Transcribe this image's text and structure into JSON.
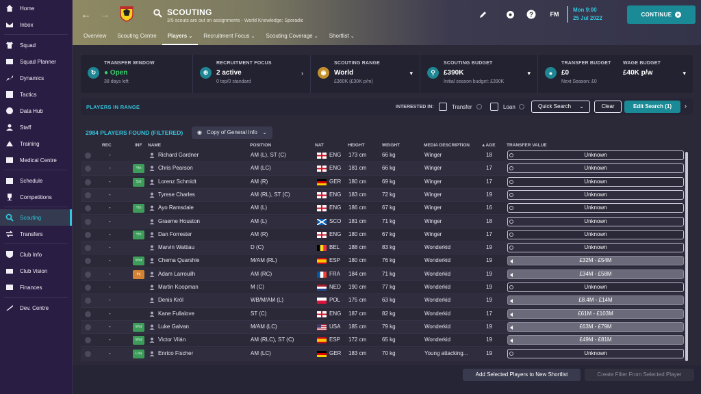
{
  "sidebar": {
    "items": [
      {
        "label": "Home",
        "icon": "home-icon"
      },
      {
        "label": "Inbox",
        "icon": "inbox-icon"
      },
      {
        "label": "Squad",
        "icon": "shirt-icon"
      },
      {
        "label": "Squad Planner",
        "icon": "planner-icon"
      },
      {
        "label": "Dynamics",
        "icon": "dynamics-icon"
      },
      {
        "label": "Tactics",
        "icon": "tactics-icon"
      },
      {
        "label": "Data Hub",
        "icon": "data-hub-icon"
      },
      {
        "label": "Staff",
        "icon": "staff-icon"
      },
      {
        "label": "Training",
        "icon": "training-icon"
      },
      {
        "label": "Medical Centre",
        "icon": "medical-icon"
      },
      {
        "label": "Schedule",
        "icon": "calendar-icon"
      },
      {
        "label": "Competitions",
        "icon": "trophy-icon"
      },
      {
        "label": "Scouting",
        "icon": "search-icon"
      },
      {
        "label": "Transfers",
        "icon": "transfer-icon"
      },
      {
        "label": "Club Info",
        "icon": "shield-icon"
      },
      {
        "label": "Club Vision",
        "icon": "vision-icon"
      },
      {
        "label": "Finances",
        "icon": "finances-icon"
      },
      {
        "label": "Dev. Centre",
        "icon": "dev-centre-icon"
      }
    ]
  },
  "header": {
    "title": "SCOUTING",
    "subtitle": "3/5 scouts are out on assignments - World Knowledge: Sporadic",
    "fm_label": "FM",
    "date_day": "Mon 9:00",
    "date_full": "25 Jul 2022",
    "continue_label": "CONTINUE",
    "tabs": [
      "Overview",
      "Scouting Centre",
      "Players",
      "Recruitment Focus",
      "Scouting Coverage",
      "Shortlist"
    ]
  },
  "info": {
    "transfer_window": {
      "label": "TRANSFER WINDOW",
      "value": "Open",
      "sub": "38 days left"
    },
    "recruitment_focus": {
      "label": "RECRUITMENT FOCUS",
      "value": "2 active",
      "sub": "0 top/0 standard"
    },
    "scouting_range": {
      "label": "SCOUTING RANGE",
      "value": "World",
      "sub": "£360K (£30K p/m)"
    },
    "scouting_budget": {
      "label": "SCOUTING BUDGET",
      "value": "£390K",
      "sub": "Initial season budget: £390K"
    },
    "transfer_budget": {
      "label": "TRANSFER BUDGET",
      "value": "£0",
      "sub": "Next Season: £0"
    },
    "wage_budget": {
      "label": "WAGE BUDGET",
      "value": "£40K p/w"
    }
  },
  "players_bar": {
    "title": "PLAYERS IN RANGE",
    "interested_label": "INTERESTED IN:",
    "transfer_label": "Transfer",
    "loan_label": "Loan",
    "quick_search": "Quick Search",
    "clear": "Clear",
    "edit_search": "Edit Search (1)"
  },
  "found_label": "2984 PLAYERS FOUND (FILTERED)",
  "view_label": "Copy of General Info",
  "columns": {
    "rec": "REC",
    "inf": "INF",
    "name": "NAME",
    "position": "POSITION",
    "nat": "NAT",
    "height": "HEIGHT",
    "weight": "WEIGHT",
    "media": "MEDIA DESCRIPTION",
    "age": "AGE",
    "value": "TRANSFER VALUE"
  },
  "players": [
    {
      "rec": "-",
      "inf": "",
      "name": "Richard Gardner",
      "position": "AM (L), ST (C)",
      "nat": "ENG",
      "flag": "eng",
      "height": "173 cm",
      "weight": "66 kg",
      "media": "Winger",
      "age": "18",
      "value": "Unknown"
    },
    {
      "rec": "-",
      "inf": "Yth",
      "name": "Chris Pearson",
      "position": "AM (LC)",
      "nat": "ENG",
      "flag": "eng",
      "height": "181 cm",
      "weight": "66 kg",
      "media": "Winger",
      "age": "17",
      "value": "Unknown"
    },
    {
      "rec": "-",
      "inf": "Sst",
      "name": "Lorenz Schmidt",
      "position": "AM (R)",
      "nat": "GER",
      "flag": "ger",
      "height": "180 cm",
      "weight": "69 kg",
      "media": "Winger",
      "age": "17",
      "value": "Unknown"
    },
    {
      "rec": "-",
      "inf": "",
      "name": "Tyrese Charles",
      "position": "AM (RL), ST (C)",
      "nat": "ENG",
      "flag": "eng",
      "height": "183 cm",
      "weight": "72 kg",
      "media": "Winger",
      "age": "19",
      "value": "Unknown"
    },
    {
      "rec": "-",
      "inf": "Yth",
      "name": "Ayo Ramsdale",
      "position": "AM (L)",
      "nat": "ENG",
      "flag": "eng",
      "height": "186 cm",
      "weight": "67 kg",
      "media": "Winger",
      "age": "16",
      "value": "Unknown"
    },
    {
      "rec": "-",
      "inf": "",
      "name": "Graeme Houston",
      "position": "AM (L)",
      "nat": "SCO",
      "flag": "sco",
      "height": "181 cm",
      "weight": "71 kg",
      "media": "Winger",
      "age": "18",
      "value": "Unknown"
    },
    {
      "rec": "-",
      "inf": "Yth",
      "name": "Dan Forrester",
      "position": "AM (R)",
      "nat": "ENG",
      "flag": "eng",
      "height": "180 cm",
      "weight": "67 kg",
      "media": "Winger",
      "age": "17",
      "value": "Unknown"
    },
    {
      "rec": "-",
      "inf": "",
      "name": "Marvin Wattiau",
      "position": "D (C)",
      "nat": "BEL",
      "flag": "bel",
      "height": "188 cm",
      "weight": "83 kg",
      "media": "Wonderkid",
      "age": "19",
      "value": "Unknown"
    },
    {
      "rec": "-",
      "inf": "Wnt",
      "name": "Chema Quarshie",
      "position": "M/AM (RL)",
      "nat": "ESP",
      "flag": "esp",
      "height": "180 cm",
      "weight": "76 kg",
      "media": "Wonderkid",
      "age": "19",
      "value": "£32M - £54M"
    },
    {
      "rec": "-",
      "inf": "Inj",
      "name": "Adam Larrouilh",
      "position": "AM (RC)",
      "nat": "FRA",
      "flag": "fra",
      "height": "184 cm",
      "weight": "71 kg",
      "media": "Wonderkid",
      "age": "19",
      "value": "£34M - £58M"
    },
    {
      "rec": "-",
      "inf": "",
      "name": "Martin Koopman",
      "position": "M (C)",
      "nat": "NED",
      "flag": "ned",
      "height": "190 cm",
      "weight": "77 kg",
      "media": "Wonderkid",
      "age": "19",
      "value": "Unknown"
    },
    {
      "rec": "-",
      "inf": "",
      "name": "Denis Król",
      "position": "WB/M/AM (L)",
      "nat": "POL",
      "flag": "pol",
      "height": "175 cm",
      "weight": "63 kg",
      "media": "Wonderkid",
      "age": "19",
      "value": "£8.4M - £14M"
    },
    {
      "rec": "-",
      "inf": "",
      "name": "Kane Fullalove",
      "position": "ST (C)",
      "nat": "ENG",
      "flag": "eng",
      "height": "187 cm",
      "weight": "82 kg",
      "media": "Wonderkid",
      "age": "17",
      "value": "£61M - £103M"
    },
    {
      "rec": "-",
      "inf": "Wnt",
      "name": "Luke Galvan",
      "position": "M/AM (LC)",
      "nat": "USA",
      "flag": "usa",
      "height": "185 cm",
      "weight": "79 kg",
      "media": "Wonderkid",
      "age": "19",
      "value": "£63M - £79M"
    },
    {
      "rec": "-",
      "inf": "Wnt",
      "name": "Victor Vilán",
      "position": "AM (RLC), ST (C)",
      "nat": "ESP",
      "flag": "esp",
      "height": "172 cm",
      "weight": "65 kg",
      "media": "Wonderkid",
      "age": "19",
      "value": "£49M - £81M"
    },
    {
      "rec": "-",
      "inf": "Loa",
      "name": "Enrico Fischer",
      "position": "AM (LC)",
      "nat": "GER",
      "flag": "ger",
      "height": "183 cm",
      "weight": "70 kg",
      "media": "Young attacking...",
      "age": "19",
      "value": "Unknown"
    }
  ],
  "bottom": {
    "add_label": "Add Selected Players to New Shortlist",
    "filter_label": "Create Filter From Selected Player"
  }
}
